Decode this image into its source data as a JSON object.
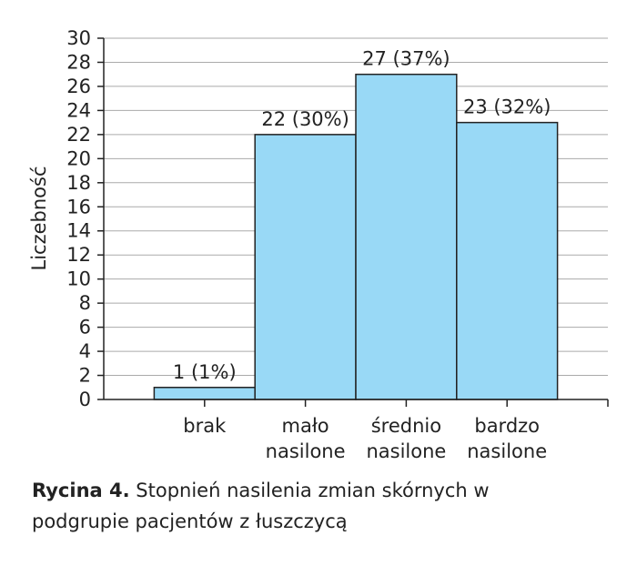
{
  "chart_data": {
    "type": "bar",
    "y_label": "Liczebność",
    "categories": [
      "brak",
      "mało nasilone",
      "średnio nasilone",
      "bardzo nasilone"
    ],
    "values": [
      1,
      22,
      27,
      23
    ],
    "value_labels": [
      "1 (1%)",
      "22 (30%)",
      "27 (37%)",
      "23 (32%)"
    ],
    "color": "#99d9f6",
    "ylim": [
      0,
      30
    ],
    "yticks": [
      0,
      2,
      4,
      6,
      8,
      10,
      12,
      14,
      16,
      18,
      20,
      22,
      24,
      26,
      28,
      30
    ],
    "grid": true
  },
  "caption": {
    "label": "Rycina 4.",
    "text": "Stopnień nasilenia zmian skórnych w podgrupie pacjentów z łuszczycą"
  }
}
